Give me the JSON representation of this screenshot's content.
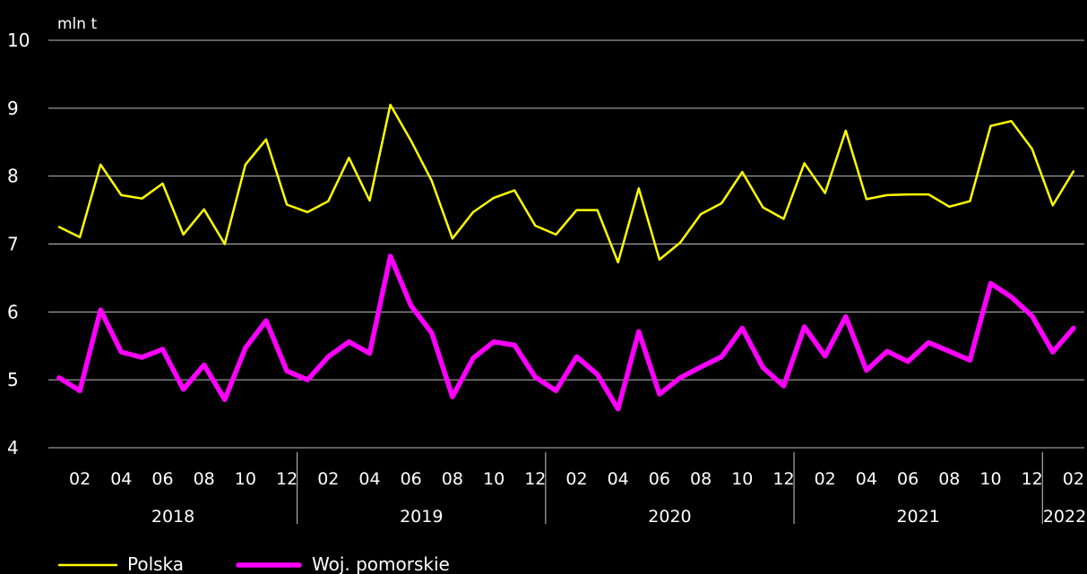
{
  "chart_data": {
    "type": "line",
    "unit_label": "mln t",
    "ylim": [
      4,
      10
    ],
    "yticks": [
      4,
      5,
      6,
      7,
      8,
      9,
      10
    ],
    "grid": "horizontal",
    "legend_position": "bottom-left",
    "month_tick_labels": [
      "02",
      "04",
      "06",
      "08",
      "10",
      "12"
    ],
    "years": [
      "2018",
      "2019",
      "2020",
      "2021",
      "2022"
    ],
    "x": [
      "2018-01",
      "2018-02",
      "2018-03",
      "2018-04",
      "2018-05",
      "2018-06",
      "2018-07",
      "2018-08",
      "2018-09",
      "2018-10",
      "2018-11",
      "2018-12",
      "2019-01",
      "2019-02",
      "2019-03",
      "2019-04",
      "2019-05",
      "2019-06",
      "2019-07",
      "2019-08",
      "2019-09",
      "2019-10",
      "2019-11",
      "2019-12",
      "2020-01",
      "2020-02",
      "2020-03",
      "2020-04",
      "2020-05",
      "2020-06",
      "2020-07",
      "2020-08",
      "2020-09",
      "2020-10",
      "2020-11",
      "2020-12",
      "2021-01",
      "2021-02",
      "2021-03",
      "2021-04",
      "2021-05",
      "2021-06",
      "2021-07",
      "2021-08",
      "2021-09",
      "2021-10",
      "2021-11",
      "2021-12",
      "2022-01",
      "2022-02"
    ],
    "series": [
      {
        "name": "Polska",
        "color": "#ffff00",
        "values": [
          7.25,
          7.1,
          8.17,
          7.72,
          7.67,
          7.89,
          7.14,
          7.51,
          7.0,
          8.17,
          8.54,
          7.58,
          7.47,
          7.63,
          8.27,
          7.64,
          9.05,
          8.52,
          7.93,
          7.08,
          7.47,
          7.68,
          7.79,
          7.27,
          7.14,
          7.5,
          7.5,
          6.73,
          7.82,
          6.77,
          7.02,
          7.44,
          7.6,
          8.06,
          7.54,
          7.37,
          8.19,
          7.75,
          8.67,
          7.66,
          7.72,
          7.73,
          7.73,
          7.55,
          7.63,
          8.74,
          8.81,
          8.4,
          7.57,
          8.07
        ]
      },
      {
        "name": "Woj. pomorskie",
        "color": "#ff00ff",
        "values": [
          5.03,
          4.84,
          6.03,
          5.41,
          5.33,
          5.45,
          4.86,
          5.22,
          4.71,
          5.47,
          5.87,
          5.13,
          5.0,
          5.34,
          5.56,
          5.39,
          6.82,
          6.09,
          5.69,
          4.75,
          5.32,
          5.56,
          5.51,
          5.04,
          4.84,
          5.34,
          5.08,
          4.57,
          5.71,
          4.79,
          5.03,
          5.19,
          5.34,
          5.76,
          5.18,
          4.91,
          5.78,
          5.35,
          5.93,
          5.14,
          5.42,
          5.27,
          5.55,
          5.42,
          5.29,
          6.42,
          6.22,
          5.94,
          5.41,
          5.76
        ]
      }
    ]
  }
}
